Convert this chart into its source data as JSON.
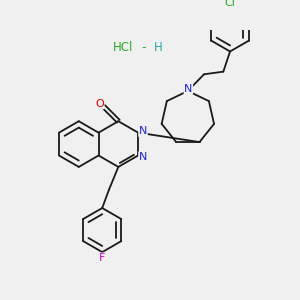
{
  "background_color": "#f0f0f0",
  "bond_color": "#1a1a1a",
  "bond_width": 1.3,
  "atom_colors": {
    "N": "#2222dd",
    "O": "#dd0000",
    "F": "#cc00cc",
    "Cl": "#22aa22",
    "HCl_H": "#22aaaa"
  },
  "hcl_color": "#22aa22",
  "hcl_h_color": "#22aaaa",
  "figsize": [
    3.0,
    3.0
  ],
  "dpi": 100,
  "xlim": [
    0,
    10
  ],
  "ylim": [
    0,
    10
  ]
}
